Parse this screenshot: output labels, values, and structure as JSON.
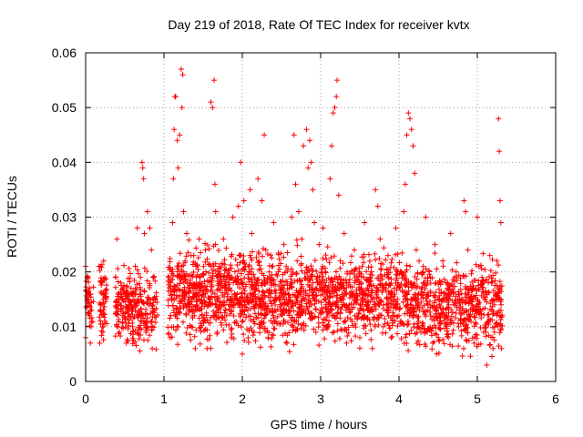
{
  "chart_data": {
    "type": "scatter",
    "title": "Day 219 of 2018, Rate Of TEC Index for receiver kvtx",
    "xlabel": "GPS time / hours",
    "ylabel": "ROTI / TECUs",
    "xlim": [
      0,
      6
    ],
    "ylim": [
      0,
      0.06
    ],
    "x_ticks": [
      "0",
      "1",
      "2",
      "3",
      "4",
      "5",
      "6"
    ],
    "y_ticks": [
      "0",
      "0.01",
      "0.02",
      "0.03",
      "0.04",
      "0.05",
      "0.06"
    ],
    "grid": true,
    "marker": "plus",
    "color": "#ff0000",
    "series": [
      {
        "name": "ROTI",
        "points": [
          [
            0.0,
            0.021
          ],
          [
            0.0,
            0.008
          ],
          [
            0.02,
            0.019
          ],
          [
            0.03,
            0.015
          ],
          [
            0.05,
            0.012
          ],
          [
            0.06,
            0.007
          ],
          [
            0.07,
            0.01
          ],
          [
            0.17,
            0.021
          ],
          [
            0.18,
            0.007
          ],
          [
            0.19,
            0.013
          ],
          [
            0.21,
            0.018
          ],
          [
            0.22,
            0.009
          ],
          [
            0.23,
            0.022
          ],
          [
            0.25,
            0.011
          ],
          [
            0.4,
            0.026
          ],
          [
            0.41,
            0.014
          ],
          [
            0.43,
            0.009
          ],
          [
            0.45,
            0.018
          ],
          [
            0.47,
            0.012
          ],
          [
            0.5,
            0.016
          ],
          [
            0.52,
            0.007
          ],
          [
            0.55,
            0.013
          ],
          [
            0.58,
            0.017
          ],
          [
            0.6,
            0.01
          ],
          [
            0.62,
            0.014
          ],
          [
            0.66,
            0.028
          ],
          [
            0.68,
            0.012
          ],
          [
            0.7,
            0.019
          ],
          [
            0.72,
            0.04
          ],
          [
            0.73,
            0.039
          ],
          [
            0.74,
            0.037
          ],
          [
            0.75,
            0.027
          ],
          [
            0.77,
            0.009
          ],
          [
            0.79,
            0.031
          ],
          [
            0.8,
            0.015
          ],
          [
            0.82,
            0.028
          ],
          [
            0.84,
            0.024
          ],
          [
            0.85,
            0.006
          ],
          [
            0.86,
            0.019
          ],
          [
            0.88,
            0.013
          ],
          [
            1.08,
            0.008
          ],
          [
            1.1,
            0.02
          ],
          [
            1.11,
            0.029
          ],
          [
            1.12,
            0.037
          ],
          [
            1.13,
            0.046
          ],
          [
            1.14,
            0.052
          ],
          [
            1.15,
            0.052
          ],
          [
            1.17,
            0.044
          ],
          [
            1.18,
            0.039
          ],
          [
            1.2,
            0.045
          ],
          [
            1.22,
            0.057
          ],
          [
            1.24,
            0.056
          ],
          [
            1.23,
            0.05
          ],
          [
            1.25,
            0.031
          ],
          [
            1.27,
            0.022
          ],
          [
            1.29,
            0.027
          ],
          [
            1.3,
            0.014
          ],
          [
            1.33,
            0.018
          ],
          [
            1.35,
            0.01
          ],
          [
            1.38,
            0.023
          ],
          [
            1.4,
            0.006
          ],
          [
            1.42,
            0.013
          ],
          [
            1.45,
            0.026
          ],
          [
            1.47,
            0.017
          ],
          [
            1.5,
            0.011
          ],
          [
            1.53,
            0.024
          ],
          [
            1.55,
            0.006
          ],
          [
            1.58,
            0.015
          ],
          [
            1.6,
            0.051
          ],
          [
            1.62,
            0.05
          ],
          [
            1.64,
            0.055
          ],
          [
            1.65,
            0.036
          ],
          [
            1.66,
            0.031
          ],
          [
            1.68,
            0.009
          ],
          [
            1.7,
            0.021
          ],
          [
            1.73,
            0.014
          ],
          [
            1.76,
            0.026
          ],
          [
            1.8,
            0.012
          ],
          [
            1.83,
            0.018
          ],
          [
            1.86,
            0.008
          ],
          [
            1.88,
            0.03
          ],
          [
            1.9,
            0.016
          ],
          [
            1.92,
            0.011
          ],
          [
            1.95,
            0.032
          ],
          [
            1.96,
            0.023
          ],
          [
            1.98,
            0.04
          ],
          [
            2.0,
            0.005
          ],
          [
            2.02,
            0.033
          ],
          [
            2.04,
            0.021
          ],
          [
            2.07,
            0.013
          ],
          [
            2.1,
            0.035
          ],
          [
            2.12,
            0.027
          ],
          [
            2.15,
            0.009
          ],
          [
            2.18,
            0.018
          ],
          [
            2.2,
            0.037
          ],
          [
            2.22,
            0.014
          ],
          [
            2.25,
            0.033
          ],
          [
            2.28,
            0.045
          ],
          [
            2.3,
            0.024
          ],
          [
            2.33,
            0.008
          ],
          [
            2.36,
            0.016
          ],
          [
            2.4,
            0.029
          ],
          [
            2.43,
            0.011
          ],
          [
            2.46,
            0.02
          ],
          [
            2.5,
            0.014
          ],
          [
            2.53,
            0.025
          ],
          [
            2.57,
            0.007
          ],
          [
            2.6,
            0.017
          ],
          [
            2.63,
            0.03
          ],
          [
            2.66,
            0.045
          ],
          [
            2.68,
            0.036
          ],
          [
            2.7,
            0.022
          ],
          [
            2.72,
            0.031
          ],
          [
            2.74,
            0.012
          ],
          [
            2.76,
            0.026
          ],
          [
            2.78,
            0.043
          ],
          [
            2.8,
            0.015
          ],
          [
            2.82,
            0.046
          ],
          [
            2.84,
            0.039
          ],
          [
            2.86,
            0.044
          ],
          [
            2.88,
            0.04
          ],
          [
            2.9,
            0.035
          ],
          [
            2.92,
            0.029
          ],
          [
            2.94,
            0.009
          ],
          [
            2.96,
            0.019
          ],
          [
            2.98,
            0.025
          ],
          [
            3.0,
            0.013
          ],
          [
            3.03,
            0.028
          ],
          [
            3.06,
            0.02
          ],
          [
            3.09,
            0.01
          ],
          [
            3.12,
            0.037
          ],
          [
            3.14,
            0.043
          ],
          [
            3.16,
            0.049
          ],
          [
            3.18,
            0.05
          ],
          [
            3.2,
            0.052
          ],
          [
            3.21,
            0.055
          ],
          [
            3.23,
            0.034
          ],
          [
            3.25,
            0.022
          ],
          [
            3.28,
            0.014
          ],
          [
            3.3,
            0.027
          ],
          [
            3.33,
            0.007
          ],
          [
            3.36,
            0.018
          ],
          [
            3.4,
            0.011
          ],
          [
            3.43,
            0.024
          ],
          [
            3.46,
            0.016
          ],
          [
            3.5,
            0.008
          ],
          [
            3.53,
            0.021
          ],
          [
            3.56,
            0.029
          ],
          [
            3.6,
            0.013
          ],
          [
            3.63,
            0.019
          ],
          [
            3.66,
            0.006
          ],
          [
            3.7,
            0.035
          ],
          [
            3.73,
            0.032
          ],
          [
            3.76,
            0.026
          ],
          [
            3.8,
            0.01
          ],
          [
            3.83,
            0.017
          ],
          [
            3.86,
            0.023
          ],
          [
            3.9,
            0.008
          ],
          [
            3.93,
            0.014
          ],
          [
            3.96,
            0.028
          ],
          [
            4.0,
            0.012
          ],
          [
            4.03,
            0.02
          ],
          [
            4.06,
            0.031
          ],
          [
            4.08,
            0.036
          ],
          [
            4.1,
            0.045
          ],
          [
            4.12,
            0.049
          ],
          [
            4.14,
            0.048
          ],
          [
            4.16,
            0.046
          ],
          [
            4.18,
            0.043
          ],
          [
            4.2,
            0.038
          ],
          [
            4.22,
            0.024
          ],
          [
            4.25,
            0.016
          ],
          [
            4.28,
            0.009
          ],
          [
            4.31,
            0.021
          ],
          [
            4.34,
            0.03
          ],
          [
            4.37,
            0.013
          ],
          [
            4.4,
            0.019
          ],
          [
            4.43,
            0.007
          ],
          [
            4.46,
            0.025
          ],
          [
            4.5,
            0.015
          ],
          [
            4.53,
            0.011
          ],
          [
            4.56,
            0.022
          ],
          [
            4.6,
            0.018
          ],
          [
            4.63,
            0.008
          ],
          [
            4.66,
            0.027
          ],
          [
            4.7,
            0.014
          ],
          [
            4.73,
            0.02
          ],
          [
            4.76,
            0.01
          ],
          [
            4.8,
            0.016
          ],
          [
            4.83,
            0.033
          ],
          [
            4.85,
            0.031
          ],
          [
            4.88,
            0.024
          ],
          [
            4.9,
            0.012
          ],
          [
            4.93,
            0.017
          ],
          [
            4.96,
            0.007
          ],
          [
            5.0,
            0.03
          ],
          [
            5.02,
            0.021
          ],
          [
            5.04,
            0.013
          ],
          [
            5.06,
            0.019
          ],
          [
            5.08,
            0.009
          ],
          [
            5.1,
            0.015
          ],
          [
            5.12,
            0.003
          ],
          [
            5.14,
            0.011
          ],
          [
            5.16,
            0.023
          ],
          [
            5.18,
            0.018
          ],
          [
            5.2,
            0.006
          ],
          [
            5.22,
            0.014
          ],
          [
            5.25,
            0.022
          ],
          [
            5.27,
            0.048
          ],
          [
            5.28,
            0.042
          ],
          [
            5.29,
            0.033
          ],
          [
            5.3,
            0.029
          ],
          [
            5.31,
            0.006
          ]
        ]
      }
    ],
    "cloud_envelope": [
      {
        "x0": 0.0,
        "x1": 0.1,
        "lo": 0.007,
        "hi": 0.021,
        "n": 40
      },
      {
        "x0": 0.17,
        "x1": 0.27,
        "lo": 0.006,
        "hi": 0.022,
        "n": 60
      },
      {
        "x0": 0.38,
        "x1": 0.92,
        "lo": 0.004,
        "hi": 0.02,
        "n": 260
      },
      {
        "x0": 1.05,
        "x1": 2.0,
        "lo": 0.005,
        "hi": 0.024,
        "n": 520
      },
      {
        "x0": 2.0,
        "x1": 3.05,
        "lo": 0.004,
        "hi": 0.024,
        "n": 560
      },
      {
        "x0": 3.05,
        "x1": 4.05,
        "lo": 0.005,
        "hi": 0.023,
        "n": 520
      },
      {
        "x0": 4.05,
        "x1": 5.32,
        "lo": 0.003,
        "hi": 0.022,
        "n": 620
      }
    ]
  }
}
